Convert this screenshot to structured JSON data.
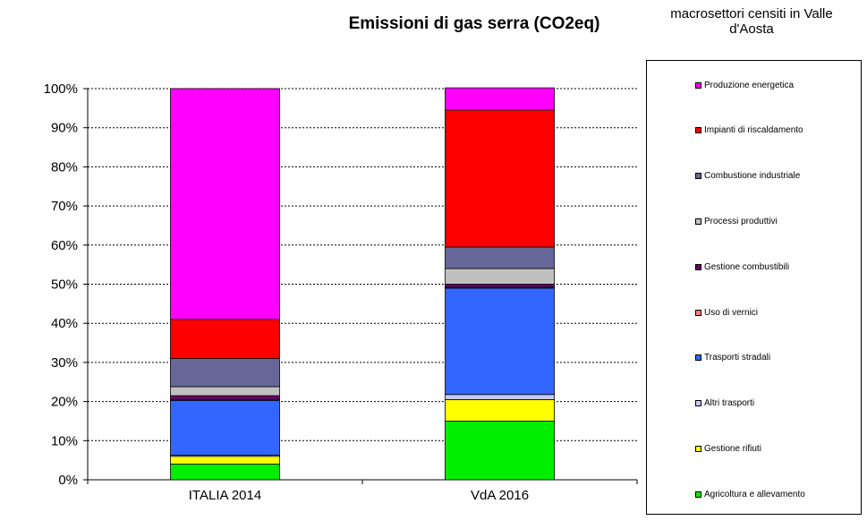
{
  "chart_data": {
    "type": "bar",
    "stacked": true,
    "title": "Emissioni  di gas serra (CO2eq)",
    "legend_title": "macrosettori censiti in Valle d'Aosta",
    "categories": [
      "ITALIA 2014",
      "VdA 2016"
    ],
    "ylim": [
      0,
      100
    ],
    "yticks": [
      "0%",
      "10%",
      "20%",
      "30%",
      "40%",
      "50%",
      "60%",
      "70%",
      "80%",
      "90%",
      "100%"
    ],
    "grid": true,
    "legend_position": "right",
    "series": [
      {
        "name": "Agricoltura e allevamento",
        "color": "#00ee00",
        "values": [
          4.0,
          15.0
        ]
      },
      {
        "name": "Gestione rifiuti",
        "color": "#ffff00",
        "values": [
          2.0,
          5.5
        ]
      },
      {
        "name": "Altri trasporti",
        "color": "#c8c8ff",
        "values": [
          0.3,
          1.3
        ]
      },
      {
        "name": "Trasporti stradali",
        "color": "#3366ff",
        "values": [
          14.0,
          27.2
        ]
      },
      {
        "name": "Uso di vernici",
        "color": "#ff7f7f",
        "values": [
          0.2,
          0.2
        ]
      },
      {
        "name": "Gestione combustibili",
        "color": "#660066",
        "values": [
          1.0,
          0.8
        ]
      },
      {
        "name": "Processi produttivi",
        "color": "#c0c0c0",
        "values": [
          2.3,
          4.0
        ]
      },
      {
        "name": "Combustione industriale",
        "color": "#666699",
        "values": [
          7.2,
          5.5
        ]
      },
      {
        "name": "Impianti di riscaldamento",
        "color": "#ff0000",
        "values": [
          10.0,
          35.0
        ]
      },
      {
        "name": "Produzione energetica",
        "color": "#ff00ff",
        "values": [
          59.0,
          5.7
        ]
      }
    ]
  }
}
